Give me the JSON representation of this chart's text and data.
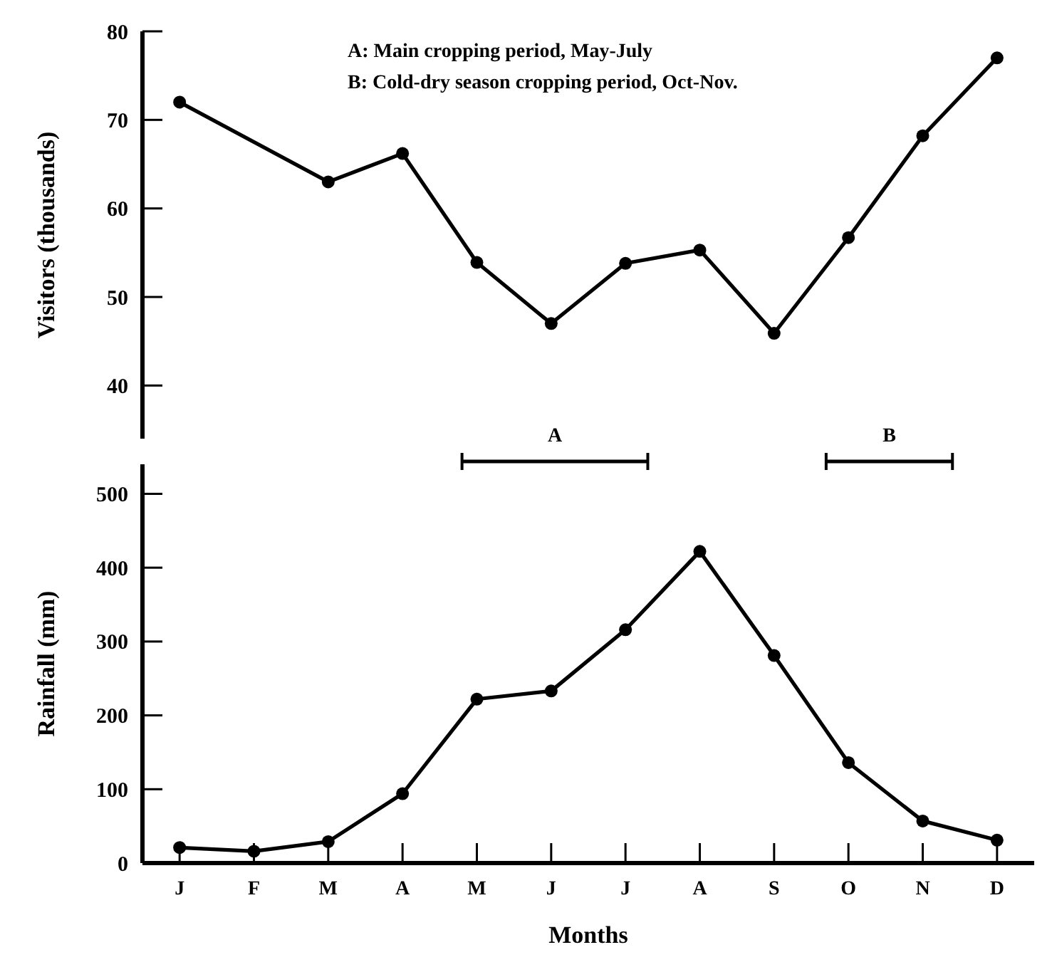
{
  "chart_data": [
    {
      "type": "line",
      "ylabel": "Visitors (thousands)",
      "categories": [
        null,
        null,
        null,
        null,
        null,
        null,
        null,
        null,
        null,
        null,
        null,
        null
      ],
      "ylim": [
        34,
        80
      ],
      "yticks": [
        40,
        50,
        60,
        70,
        80
      ],
      "tick_labels": "y",
      "marker": "circle",
      "series": [
        {
          "color": "#000000",
          "values": [
            72.0,
            null,
            63.0,
            66.2,
            53.9,
            47.0,
            53.8,
            55.3,
            45.9,
            56.7,
            68.2,
            77.0
          ]
        }
      ],
      "annotations": [
        "A: Main cropping period, May-July",
        "B: Cold-dry season cropping period, Oct-Nov."
      ]
    },
    {
      "type": "line",
      "ylabel": "Rainfall (mm)",
      "xlabel": "Months",
      "categories": [
        "J",
        "F",
        "M",
        "A",
        "M",
        "J",
        "J",
        "A",
        "S",
        "O",
        "N",
        "D"
      ],
      "ylim": [
        0,
        540
      ],
      "yticks": [
        0,
        100,
        200,
        300,
        400,
        500
      ],
      "marker": "circle",
      "series": [
        {
          "color": "#000000",
          "values": [
            21,
            16,
            29,
            94,
            222,
            233,
            316,
            422,
            281,
            136,
            57,
            31
          ]
        }
      ],
      "annotations": [
        "A",
        "B"
      ]
    }
  ]
}
